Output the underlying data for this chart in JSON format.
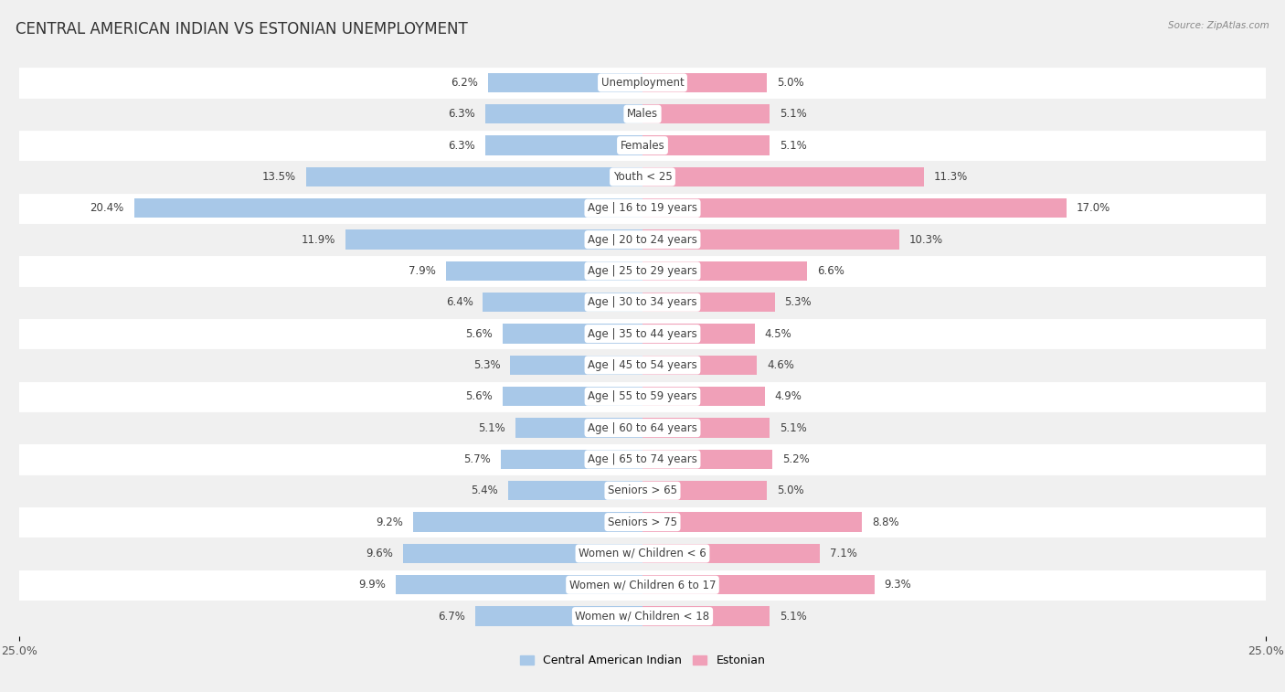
{
  "title": "CENTRAL AMERICAN INDIAN VS ESTONIAN UNEMPLOYMENT",
  "source": "Source: ZipAtlas.com",
  "categories": [
    "Unemployment",
    "Males",
    "Females",
    "Youth < 25",
    "Age | 16 to 19 years",
    "Age | 20 to 24 years",
    "Age | 25 to 29 years",
    "Age | 30 to 34 years",
    "Age | 35 to 44 years",
    "Age | 45 to 54 years",
    "Age | 55 to 59 years",
    "Age | 60 to 64 years",
    "Age | 65 to 74 years",
    "Seniors > 65",
    "Seniors > 75",
    "Women w/ Children < 6",
    "Women w/ Children 6 to 17",
    "Women w/ Children < 18"
  ],
  "left_values": [
    6.2,
    6.3,
    6.3,
    13.5,
    20.4,
    11.9,
    7.9,
    6.4,
    5.6,
    5.3,
    5.6,
    5.1,
    5.7,
    5.4,
    9.2,
    9.6,
    9.9,
    6.7
  ],
  "right_values": [
    5.0,
    5.1,
    5.1,
    11.3,
    17.0,
    10.3,
    6.6,
    5.3,
    4.5,
    4.6,
    4.9,
    5.1,
    5.2,
    5.0,
    8.8,
    7.1,
    9.3,
    5.1
  ],
  "left_color": "#a8c8e8",
  "right_color": "#f0a0b8",
  "left_label": "Central American Indian",
  "right_label": "Estonian",
  "axis_limit": 25.0,
  "bg_light": "#f0f0f0",
  "bg_dark": "#e0e0e0",
  "row_white": "#ffffff",
  "title_fontsize": 12,
  "label_fontsize": 8.5,
  "value_fontsize": 8.5
}
